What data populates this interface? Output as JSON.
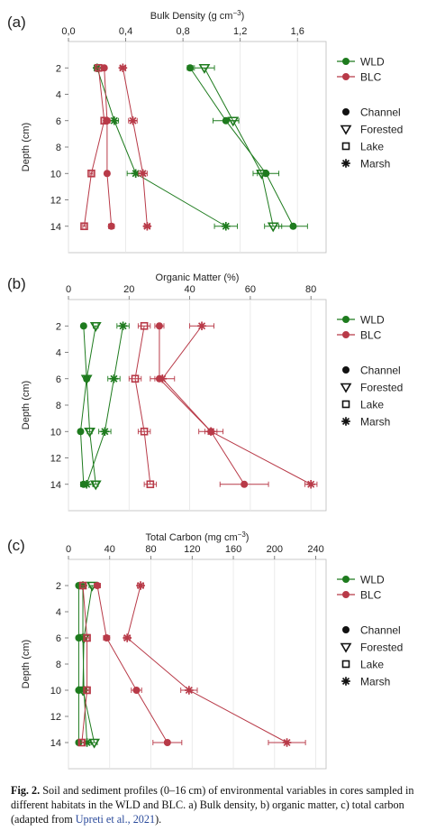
{
  "figure": {
    "caption_label": "Fig. 2.",
    "caption_text": " Soil and sediment profiles (0–16 cm) of environmental variables in cores sampled in different habitats in the WLD and BLC. a) Bulk density, b) organic matter, c) total carbon (adapted from ",
    "caption_link": "Upreti et al., 2021",
    "caption_end": ")."
  },
  "colors": {
    "WLD": "#1e7b1e",
    "BLC": "#b83a48"
  },
  "chart_data": [
    {
      "type": "scatter",
      "panel_label": "(a)",
      "title": "Bulk Density (g cm",
      "title_sup": "−3",
      "title_end": ")",
      "xlim": [
        0,
        1.8
      ],
      "xticks": [
        0,
        0.4,
        0.8,
        1.2,
        1.6
      ],
      "xtick_labels": [
        "0,0",
        "0,4",
        "0,8",
        "1,2",
        "1,6"
      ],
      "ylabel": "Depth (cm)",
      "ylim": [
        0,
        16
      ],
      "yticks": [
        2,
        4,
        6,
        8,
        10,
        12,
        14
      ],
      "legend_sites": [
        "WLD",
        "BLC"
      ],
      "legend_habitats": [
        "Channel",
        "Forested",
        "Lake",
        "Marsh"
      ],
      "series": [
        {
          "name": "WLD",
          "habitat": "Channel",
          "x": [
            0.85,
            1.1,
            1.38,
            1.57
          ],
          "y": [
            2,
            6,
            10,
            14
          ],
          "err": [
            0.02,
            0.09,
            0.09,
            0.1
          ]
        },
        {
          "name": "WLD",
          "habitat": "Forested",
          "x": [
            0.95,
            1.15,
            1.35,
            1.43
          ],
          "y": [
            2,
            6,
            10,
            14
          ],
          "err": [
            0.07,
            0.04,
            0.03,
            0.06
          ]
        },
        {
          "name": "WLD",
          "habitat": "Marsh",
          "x": [
            0.2,
            0.32,
            0.47,
            1.1
          ],
          "y": [
            2,
            6,
            10,
            14
          ],
          "err": [
            0.02,
            0.03,
            0.06,
            0.08
          ]
        },
        {
          "name": "BLC",
          "habitat": "Channel",
          "x": [
            0.25,
            0.27,
            0.27,
            0.3
          ],
          "y": [
            2,
            6,
            10,
            14
          ],
          "err": [
            0.01,
            0.02,
            0.01,
            0.02
          ]
        },
        {
          "name": "BLC",
          "habitat": "Lake",
          "x": [
            0.21,
            0.25,
            0.16,
            0.11
          ],
          "y": [
            2,
            6,
            10,
            14
          ],
          "err": [
            0.01,
            0.01,
            0.01,
            0.01
          ]
        },
        {
          "name": "BLC",
          "habitat": "Marsh",
          "x": [
            0.38,
            0.45,
            0.52,
            0.55
          ],
          "y": [
            2,
            6,
            10,
            14
          ],
          "err": [
            0.02,
            0.03,
            0.03,
            0.02
          ]
        }
      ]
    },
    {
      "type": "scatter",
      "panel_label": "(b)",
      "title": "Organic Matter (%)",
      "title_sup": "",
      "title_end": "",
      "xlim": [
        0,
        85
      ],
      "xticks": [
        0,
        20,
        40,
        60,
        80
      ],
      "xtick_labels": [
        "0",
        "20",
        "40",
        "60",
        "80"
      ],
      "ylabel": "Depth (cm)",
      "ylim": [
        0,
        16
      ],
      "yticks": [
        2,
        4,
        6,
        8,
        10,
        12,
        14
      ],
      "legend_sites": [
        "WLD",
        "BLC"
      ],
      "legend_habitats": [
        "Channel",
        "Forested",
        "Lake",
        "Marsh"
      ],
      "series": [
        {
          "name": "WLD",
          "habitat": "Channel",
          "x": [
            5,
            6,
            4,
            5
          ],
          "y": [
            2,
            6,
            10,
            14
          ],
          "err": [
            0.5,
            0.8,
            0.5,
            0.8
          ]
        },
        {
          "name": "WLD",
          "habitat": "Forested",
          "x": [
            9,
            6,
            7,
            9
          ],
          "y": [
            2,
            6,
            10,
            14
          ],
          "err": [
            0.8,
            0.8,
            0.8,
            0.8
          ]
        },
        {
          "name": "WLD",
          "habitat": "Marsh",
          "x": [
            18,
            15,
            12,
            6
          ],
          "y": [
            2,
            6,
            10,
            14
          ],
          "err": [
            2,
            2,
            2,
            2
          ]
        },
        {
          "name": "BLC",
          "habitat": "Channel",
          "x": [
            30,
            30,
            47,
            58
          ],
          "y": [
            2,
            6,
            10,
            14
          ],
          "err": [
            1.5,
            1.5,
            2,
            8
          ]
        },
        {
          "name": "BLC",
          "habitat": "Lake",
          "x": [
            25,
            22,
            25,
            27
          ],
          "y": [
            2,
            6,
            10,
            14
          ],
          "err": [
            2,
            2,
            2,
            2
          ]
        },
        {
          "name": "BLC",
          "habitat": "Marsh",
          "x": [
            44,
            31,
            47,
            80
          ],
          "y": [
            2,
            6,
            10,
            14
          ],
          "err": [
            4,
            4,
            4,
            2
          ]
        }
      ]
    },
    {
      "type": "scatter",
      "panel_label": "(c)",
      "title": "Total Carbon (mg cm",
      "title_sup": "−3",
      "title_end": ")",
      "xlim": [
        0,
        250
      ],
      "xticks": [
        0,
        40,
        80,
        120,
        160,
        200,
        240
      ],
      "xtick_labels": [
        "0",
        "40",
        "80",
        "120",
        "160",
        "200",
        "240"
      ],
      "ylabel": "Depth (cm)",
      "ylim": [
        0,
        16
      ],
      "yticks": [
        2,
        4,
        6,
        8,
        10,
        12,
        14
      ],
      "legend_sites": [
        "WLD",
        "BLC"
      ],
      "legend_habitats": [
        "Channel",
        "Forested",
        "Lake",
        "Marsh"
      ],
      "series": [
        {
          "name": "WLD",
          "habitat": "Channel",
          "x": [
            10,
            10,
            10,
            10
          ],
          "y": [
            2,
            6,
            10,
            14
          ],
          "err": [
            1,
            1,
            1,
            1
          ]
        },
        {
          "name": "WLD",
          "habitat": "Forested",
          "x": [
            23,
            15,
            14,
            25
          ],
          "y": [
            2,
            6,
            10,
            14
          ],
          "err": [
            3,
            3,
            2,
            3
          ]
        },
        {
          "name": "WLD",
          "habitat": "Marsh",
          "x": [
            14,
            14,
            15,
            18
          ],
          "y": [
            2,
            6,
            10,
            14
          ],
          "err": [
            2,
            2,
            2,
            2
          ]
        },
        {
          "name": "BLC",
          "habitat": "Channel",
          "x": [
            28,
            37,
            66,
            96
          ],
          "y": [
            2,
            6,
            10,
            14
          ],
          "err": [
            3,
            3,
            5,
            14
          ]
        },
        {
          "name": "BLC",
          "habitat": "Lake",
          "x": [
            14,
            18,
            18,
            13
          ],
          "y": [
            2,
            6,
            10,
            14
          ],
          "err": [
            2,
            2,
            2,
            2
          ]
        },
        {
          "name": "BLC",
          "habitat": "Marsh",
          "x": [
            70,
            57,
            117,
            212
          ],
          "y": [
            2,
            6,
            10,
            14
          ],
          "err": [
            3,
            3,
            8,
            18
          ]
        }
      ]
    }
  ]
}
